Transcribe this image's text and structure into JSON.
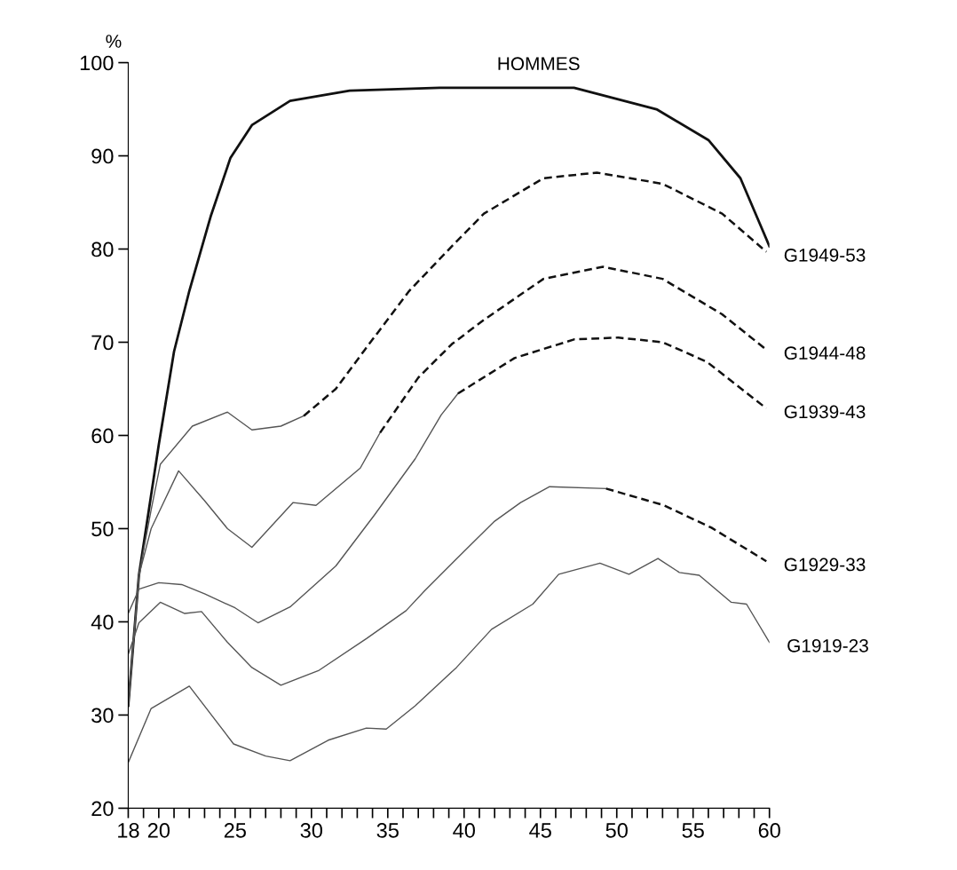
{
  "chart_data": {
    "type": "line",
    "ylabel": "%",
    "xlim": [
      18,
      60
    ],
    "ylim": [
      20,
      100
    ],
    "xticks": [
      {
        "value": 18,
        "label": "18"
      },
      {
        "value": 19,
        "label": null
      },
      {
        "value": 20,
        "label": "20"
      },
      {
        "value": 21,
        "label": null
      },
      {
        "value": 22,
        "label": null
      },
      {
        "value": 23,
        "label": null
      },
      {
        "value": 24,
        "label": null
      },
      {
        "value": 25,
        "label": "25"
      },
      {
        "value": 26,
        "label": null
      },
      {
        "value": 27,
        "label": null
      },
      {
        "value": 28,
        "label": null
      },
      {
        "value": 29,
        "label": null
      },
      {
        "value": 30,
        "label": "30"
      },
      {
        "value": 31,
        "label": null
      },
      {
        "value": 32,
        "label": null
      },
      {
        "value": 33,
        "label": null
      },
      {
        "value": 34,
        "label": null
      },
      {
        "value": 35,
        "label": "35"
      },
      {
        "value": 36,
        "label": null
      },
      {
        "value": 37,
        "label": null
      },
      {
        "value": 38,
        "label": null
      },
      {
        "value": 39,
        "label": null
      },
      {
        "value": 40,
        "label": "40"
      },
      {
        "value": 41,
        "label": null
      },
      {
        "value": 42,
        "label": null
      },
      {
        "value": 43,
        "label": null
      },
      {
        "value": 44,
        "label": null
      },
      {
        "value": 45,
        "label": "45"
      },
      {
        "value": 46,
        "label": null
      },
      {
        "value": 47,
        "label": null
      },
      {
        "value": 48,
        "label": null
      },
      {
        "value": 49,
        "label": null
      },
      {
        "value": 50,
        "label": "50"
      },
      {
        "value": 51,
        "label": null
      },
      {
        "value": 52,
        "label": null
      },
      {
        "value": 53,
        "label": null
      },
      {
        "value": 54,
        "label": null
      },
      {
        "value": 55,
        "label": "55"
      },
      {
        "value": 56,
        "label": null
      },
      {
        "value": 57,
        "label": null
      },
      {
        "value": 58,
        "label": null
      },
      {
        "value": 59,
        "label": null
      },
      {
        "value": 60,
        "label": "60"
      }
    ],
    "yticks": [
      20,
      30,
      40,
      50,
      60,
      70,
      80,
      90,
      100
    ],
    "grid": false,
    "legend": false,
    "marker": "none",
    "annotations": [
      "HOMMES"
    ],
    "series": [
      {
        "color": "#111111",
        "line_style": "solid",
        "x": [
          18,
          18.7,
          20,
          21,
          22,
          23.4,
          24.7,
          26.1,
          28.6,
          32.5,
          38.4,
          47.2,
          52.6,
          56,
          58.1,
          60
        ],
        "values": [
          31,
          45,
          59,
          69,
          75.5,
          83.5,
          89.8,
          93.3,
          95.9,
          97,
          97.3,
          97.3,
          95,
          91.7,
          87.6,
          80.3
        ]
      },
      {
        "color": "#555555",
        "line_style": "solid",
        "x": [
          18,
          18.7,
          19.5,
          20.1,
          22.2,
          24.5,
          26.1,
          28,
          29.5
        ],
        "values": [
          31,
          45,
          52,
          56.9,
          61,
          62.5,
          60.6,
          61,
          62.1
        ]
      },
      {
        "name": "G1949-53",
        "color": "#111111",
        "line_style": "dashed",
        "x": [
          29.5,
          31.6,
          33.5,
          36.4,
          39.2,
          41.3,
          45.2,
          48.7,
          53,
          56.9,
          59.8
        ],
        "values": [
          62.1,
          65,
          69.2,
          75.5,
          80.3,
          83.8,
          87.6,
          88.2,
          87,
          83.8,
          79.7
        ]
      },
      {
        "color": "#555555",
        "line_style": "solid",
        "x": [
          18,
          18.7,
          19.5,
          21.3,
          23,
          24.5,
          26.1,
          28.8,
          30.3,
          33.2,
          34.5
        ],
        "values": [
          31,
          45,
          50,
          56.2,
          53,
          50,
          48,
          52.8,
          52.5,
          56.5,
          60.3
        ]
      },
      {
        "name": "G1944-48",
        "color": "#111111",
        "line_style": "dashed",
        "x": [
          34.5,
          37,
          39.2,
          41.3,
          45.2,
          49.1,
          53,
          56.9,
          59.8
        ],
        "values": [
          60.3,
          66.2,
          69.8,
          72.4,
          76.8,
          78.1,
          76.8,
          73,
          69.2
        ]
      },
      {
        "color": "#555555",
        "line_style": "solid",
        "x": [
          18,
          18.7,
          20,
          21.5,
          23,
          25,
          26.5,
          28.6,
          31.6,
          34.1,
          36.8,
          38.5,
          39.6
        ],
        "values": [
          40.9,
          43.5,
          44.2,
          44,
          43,
          41.5,
          39.9,
          41.6,
          46,
          51.4,
          57.5,
          62.2,
          64.5
        ]
      },
      {
        "name": "G1939-43",
        "color": "#111111",
        "line_style": "dashed",
        "x": [
          39.6,
          43.3,
          47.2,
          50.1,
          53,
          55.9,
          59.8
        ],
        "values": [
          64.5,
          68.3,
          70.3,
          70.5,
          70,
          67.9,
          62.9
        ]
      },
      {
        "color": "#555555",
        "line_style": "solid",
        "x": [
          18,
          18.7,
          20.1,
          21.7,
          22.8,
          24.5,
          26.1,
          28,
          30.5,
          33.6,
          36.2,
          37.4,
          39.9,
          42,
          43.7,
          45.6,
          49.3
        ],
        "values": [
          36.5,
          39.9,
          42.1,
          40.9,
          41.1,
          37.8,
          35.1,
          33.2,
          34.8,
          38.2,
          41.2,
          43.3,
          47.4,
          50.8,
          52.8,
          54.5,
          54.3
        ]
      },
      {
        "name": "G1929-33",
        "color": "#111111",
        "line_style": "dashed",
        "x": [
          49.3,
          53.1,
          56.2,
          59.8
        ],
        "values": [
          54.3,
          52.5,
          50.1,
          46.5
        ]
      },
      {
        "name": "G1919-23",
        "color": "#555555",
        "line_style": "solid",
        "x": [
          18,
          19.5,
          22,
          24.9,
          27,
          28.6,
          31.1,
          33.6,
          34.9,
          36.8,
          39.5,
          41.8,
          44.5,
          46.2,
          48.9,
          50.8,
          52.7,
          54.1,
          55.4,
          57.5,
          58.5,
          60
        ],
        "values": [
          24.9,
          30.7,
          33.1,
          26.9,
          25.6,
          25.1,
          27.3,
          28.6,
          28.5,
          31,
          35.1,
          39.2,
          41.9,
          45.1,
          46.3,
          45.1,
          46.8,
          45.3,
          45,
          42.1,
          41.9,
          37.8
        ]
      }
    ]
  }
}
